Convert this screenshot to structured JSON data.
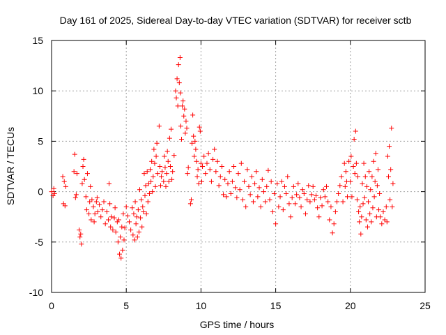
{
  "chart_data": {
    "type": "scatter",
    "title": "Day 161 of 2025, Sidereal Day-to-day VTEC variation (SDTVAR) for receiver sctb",
    "xlabel": "GPS time / hours",
    "ylabel": "SDTVAR / TECUs",
    "xlim": [
      0,
      25
    ],
    "ylim": [
      -10,
      15
    ],
    "xticks": [
      0,
      5,
      10,
      15,
      20,
      25
    ],
    "xtick_labels": [
      "0",
      "5",
      "10",
      "15",
      "20",
      "25"
    ],
    "yticks": [
      -10,
      -5,
      0,
      5,
      10,
      15
    ],
    "ytick_labels": [
      "-10",
      "-5",
      "0",
      "5",
      "10",
      "15"
    ],
    "grid": true,
    "marker": "+",
    "color": "#ff0000",
    "series": [
      {
        "name": "SDTVAR",
        "points": [
          [
            0.0,
            0.0
          ],
          [
            0.1,
            -0.4
          ],
          [
            0.15,
            0.3
          ],
          [
            0.2,
            -0.2
          ],
          [
            0.75,
            1.5
          ],
          [
            0.8,
            -1.2
          ],
          [
            0.85,
            1.0
          ],
          [
            0.9,
            -1.4
          ],
          [
            0.95,
            0.5
          ],
          [
            1.5,
            2.0
          ],
          [
            1.55,
            3.7
          ],
          [
            1.6,
            -0.6
          ],
          [
            1.65,
            -0.3
          ],
          [
            1.7,
            1.8
          ],
          [
            1.85,
            -3.8
          ],
          [
            1.9,
            -4.5
          ],
          [
            1.95,
            -4.2
          ],
          [
            2.0,
            -5.2
          ],
          [
            2.05,
            0.8
          ],
          [
            2.1,
            2.5
          ],
          [
            2.15,
            3.2
          ],
          [
            2.2,
            1.2
          ],
          [
            2.3,
            -0.5
          ],
          [
            2.35,
            -1.8
          ],
          [
            2.4,
            1.8
          ],
          [
            2.5,
            -2.2
          ],
          [
            2.55,
            -1.0
          ],
          [
            2.6,
            0.5
          ],
          [
            2.65,
            -2.8
          ],
          [
            2.7,
            -0.8
          ],
          [
            2.8,
            -1.5
          ],
          [
            2.85,
            -3.0
          ],
          [
            2.9,
            -2.2
          ],
          [
            3.0,
            -1.0
          ],
          [
            3.05,
            -0.6
          ],
          [
            3.1,
            -2.0
          ],
          [
            3.2,
            -1.3
          ],
          [
            3.3,
            -2.5
          ],
          [
            3.4,
            -1.8
          ],
          [
            3.5,
            -1.0
          ],
          [
            3.6,
            -3.2
          ],
          [
            3.7,
            -2.0
          ],
          [
            3.8,
            -2.8
          ],
          [
            3.85,
            0.8
          ],
          [
            3.9,
            -1.2
          ],
          [
            3.95,
            -3.5
          ],
          [
            4.0,
            -2.5
          ],
          [
            4.1,
            -3.8
          ],
          [
            4.2,
            -2.6
          ],
          [
            4.25,
            -1.6
          ],
          [
            4.3,
            -4.0
          ],
          [
            4.4,
            -3.0
          ],
          [
            4.45,
            -5.0
          ],
          [
            4.5,
            -2.8
          ],
          [
            4.55,
            -6.2
          ],
          [
            4.6,
            -4.5
          ],
          [
            4.65,
            -6.6
          ],
          [
            4.7,
            -3.5
          ],
          [
            4.75,
            -5.8
          ],
          [
            4.8,
            -2.2
          ],
          [
            4.85,
            -4.8
          ],
          [
            4.9,
            -3.6
          ],
          [
            5.0,
            -1.5
          ],
          [
            5.1,
            -2.4
          ],
          [
            5.2,
            -3.0
          ],
          [
            5.3,
            -3.8
          ],
          [
            5.4,
            -1.6
          ],
          [
            5.45,
            -4.3
          ],
          [
            5.5,
            -2.2
          ],
          [
            5.55,
            -4.8
          ],
          [
            5.6,
            -1.0
          ],
          [
            5.65,
            -3.2
          ],
          [
            5.7,
            -2.5
          ],
          [
            5.75,
            -4.5
          ],
          [
            5.8,
            -1.8
          ],
          [
            5.85,
            -4.0
          ],
          [
            5.9,
            0.2
          ],
          [
            5.95,
            -2.6
          ],
          [
            6.0,
            -0.8
          ],
          [
            6.05,
            -3.5
          ],
          [
            6.1,
            -1.5
          ],
          [
            6.15,
            -2.0
          ],
          [
            6.2,
            1.8
          ],
          [
            6.25,
            -0.4
          ],
          [
            6.3,
            0.6
          ],
          [
            6.35,
            -2.2
          ],
          [
            6.4,
            2.0
          ],
          [
            6.45,
            -1.0
          ],
          [
            6.5,
            0.8
          ],
          [
            6.55,
            -0.2
          ],
          [
            6.6,
            2.2
          ],
          [
            6.65,
            1.0
          ],
          [
            6.7,
            3.0
          ],
          [
            6.75,
            0.0
          ],
          [
            6.8,
            1.5
          ],
          [
            6.85,
            4.2
          ],
          [
            6.9,
            2.8
          ],
          [
            6.95,
            0.5
          ],
          [
            7.0,
            3.5
          ],
          [
            7.05,
            4.8
          ],
          [
            7.1,
            1.8
          ],
          [
            7.2,
            6.5
          ],
          [
            7.25,
            2.5
          ],
          [
            7.3,
            0.6
          ],
          [
            7.35,
            1.5
          ],
          [
            7.4,
            2.0
          ],
          [
            7.5,
            1.0
          ],
          [
            7.55,
            3.5
          ],
          [
            7.6,
            2.4
          ],
          [
            7.65,
            0.5
          ],
          [
            7.7,
            1.8
          ],
          [
            7.75,
            4.0
          ],
          [
            7.8,
            3.0
          ],
          [
            7.85,
            1.0
          ],
          [
            7.9,
            5.3
          ],
          [
            7.95,
            2.5
          ],
          [
            8.0,
            6.2
          ],
          [
            8.05,
            1.2
          ],
          [
            8.1,
            2.0
          ],
          [
            8.2,
            3.6
          ],
          [
            8.3,
            10.0
          ],
          [
            8.35,
            9.3
          ],
          [
            8.4,
            11.2
          ],
          [
            8.45,
            8.5
          ],
          [
            8.5,
            12.6
          ],
          [
            8.55,
            10.8
          ],
          [
            8.6,
            13.3
          ],
          [
            8.62,
            9.8
          ],
          [
            8.65,
            6.5
          ],
          [
            8.7,
            5.2
          ],
          [
            8.75,
            8.5
          ],
          [
            8.8,
            9.0
          ],
          [
            8.85,
            7.5
          ],
          [
            8.9,
            8.2
          ],
          [
            8.95,
            5.8
          ],
          [
            9.0,
            7.0
          ],
          [
            9.05,
            6.3
          ],
          [
            9.1,
            1.8
          ],
          [
            9.15,
            2.4
          ],
          [
            9.3,
            -1.2
          ],
          [
            9.35,
            -0.8
          ],
          [
            9.4,
            4.8
          ],
          [
            9.45,
            7.6
          ],
          [
            9.5,
            5.5
          ],
          [
            9.55,
            3.5
          ],
          [
            9.6,
            5.0
          ],
          [
            9.65,
            4.2
          ],
          [
            9.7,
            3.0
          ],
          [
            9.75,
            1.5
          ],
          [
            9.8,
            2.2
          ],
          [
            9.85,
            0.8
          ],
          [
            9.9,
            6.4
          ],
          [
            9.95,
            6.0
          ],
          [
            10.0,
            2.8
          ],
          [
            10.05,
            1.0
          ],
          [
            10.1,
            2.5
          ],
          [
            10.2,
            3.5
          ],
          [
            10.3,
            1.8
          ],
          [
            10.4,
            2.8
          ],
          [
            10.5,
            3.8
          ],
          [
            10.6,
            2.2
          ],
          [
            10.7,
            1.0
          ],
          [
            10.8,
            3.2
          ],
          [
            10.9,
            4.2
          ],
          [
            11.0,
            2.0
          ],
          [
            11.1,
            3.0
          ],
          [
            11.2,
            0.6
          ],
          [
            11.3,
            1.5
          ],
          [
            11.4,
            2.5
          ],
          [
            11.5,
            -0.3
          ],
          [
            11.6,
            1.2
          ],
          [
            11.7,
            -0.5
          ],
          [
            11.8,
            0.8
          ],
          [
            11.9,
            2.0
          ],
          [
            12.0,
            -0.2
          ],
          [
            12.1,
            1.0
          ],
          [
            12.2,
            2.5
          ],
          [
            12.3,
            0.4
          ],
          [
            12.4,
            -0.6
          ],
          [
            12.5,
            1.8
          ],
          [
            12.6,
            0.2
          ],
          [
            12.7,
            2.8
          ],
          [
            12.8,
            -0.8
          ],
          [
            12.9,
            1.0
          ],
          [
            13.0,
            -1.5
          ],
          [
            13.1,
            2.2
          ],
          [
            13.2,
            0.5
          ],
          [
            13.3,
            -0.3
          ],
          [
            13.4,
            1.5
          ],
          [
            13.5,
            -1.0
          ],
          [
            13.6,
            0.8
          ],
          [
            13.7,
            2.0
          ],
          [
            13.8,
            -0.5
          ],
          [
            13.9,
            0.4
          ],
          [
            14.0,
            -1.5
          ],
          [
            14.1,
            1.2
          ],
          [
            14.2,
            0.0
          ],
          [
            14.3,
            -1.0
          ],
          [
            14.4,
            0.5
          ],
          [
            14.5,
            2.1
          ],
          [
            14.6,
            -0.8
          ],
          [
            14.7,
            1.0
          ],
          [
            14.8,
            -2.0
          ],
          [
            14.9,
            -0.2
          ],
          [
            15.0,
            -3.2
          ],
          [
            15.1,
            0.8
          ],
          [
            15.2,
            -1.5
          ],
          [
            15.3,
            -0.5
          ],
          [
            15.4,
            1.0
          ],
          [
            15.5,
            -1.8
          ],
          [
            15.6,
            0.5
          ],
          [
            15.7,
            -0.2
          ],
          [
            15.8,
            1.5
          ],
          [
            15.9,
            -1.2
          ],
          [
            16.0,
            -2.5
          ],
          [
            16.1,
            -0.6
          ],
          [
            16.2,
            0.5
          ],
          [
            16.3,
            -1.2
          ],
          [
            16.4,
            -0.3
          ],
          [
            16.5,
            0.8
          ],
          [
            16.6,
            -0.6
          ],
          [
            16.7,
            -1.5
          ],
          [
            16.8,
            0.2
          ],
          [
            16.9,
            -0.2
          ],
          [
            17.0,
            -2.2
          ],
          [
            17.1,
            -0.8
          ],
          [
            17.2,
            0.6
          ],
          [
            17.3,
            -1.0
          ],
          [
            17.4,
            -0.3
          ],
          [
            17.5,
            0.5
          ],
          [
            17.6,
            -0.8
          ],
          [
            17.7,
            -0.4
          ],
          [
            17.8,
            -1.6
          ],
          [
            17.9,
            -2.5
          ],
          [
            18.0,
            -0.6
          ],
          [
            18.1,
            -1.4
          ],
          [
            18.2,
            0.2
          ],
          [
            18.3,
            -0.5
          ],
          [
            18.4,
            0.5
          ],
          [
            18.5,
            -1.0
          ],
          [
            18.6,
            -2.8
          ],
          [
            18.7,
            -1.5
          ],
          [
            18.8,
            -4.1
          ],
          [
            18.9,
            -3.2
          ],
          [
            19.0,
            -2.0
          ],
          [
            19.1,
            -1.0
          ],
          [
            19.2,
            -0.2
          ],
          [
            19.3,
            0.6
          ],
          [
            19.4,
            1.5
          ],
          [
            19.5,
            -1.0
          ],
          [
            19.6,
            2.8
          ],
          [
            19.65,
            0.5
          ],
          [
            19.7,
            2.0
          ],
          [
            19.75,
            1.0
          ],
          [
            19.8,
            -0.5
          ],
          [
            19.9,
            3.0
          ],
          [
            20.0,
            1.0
          ],
          [
            20.05,
            3.5
          ],
          [
            20.1,
            -0.5
          ],
          [
            20.2,
            2.5
          ],
          [
            20.25,
            5.2
          ],
          [
            20.3,
            1.8
          ],
          [
            20.35,
            6.0
          ],
          [
            20.4,
            2.8
          ],
          [
            20.45,
            -0.8
          ],
          [
            20.5,
            1.5
          ],
          [
            20.55,
            -2.0
          ],
          [
            20.6,
            -3.0
          ],
          [
            20.65,
            -1.5
          ],
          [
            20.7,
            -4.2
          ],
          [
            20.75,
            -2.5
          ],
          [
            20.8,
            0.8
          ],
          [
            20.85,
            -1.2
          ],
          [
            20.9,
            2.8
          ],
          [
            20.95,
            -0.6
          ],
          [
            21.0,
            1.5
          ],
          [
            21.05,
            -2.8
          ],
          [
            21.1,
            0.5
          ],
          [
            21.15,
            -3.5
          ],
          [
            21.2,
            -1.0
          ],
          [
            21.25,
            2.0
          ],
          [
            21.3,
            -2.2
          ],
          [
            21.35,
            0.2
          ],
          [
            21.4,
            -3.0
          ],
          [
            21.45,
            1.5
          ],
          [
            21.5,
            -1.6
          ],
          [
            21.55,
            3.0
          ],
          [
            21.6,
            -0.5
          ],
          [
            21.65,
            1.0
          ],
          [
            21.7,
            3.8
          ],
          [
            21.75,
            -2.5
          ],
          [
            21.8,
            0.6
          ],
          [
            21.85,
            2.2
          ],
          [
            21.9,
            -1.8
          ],
          [
            21.95,
            -0.2
          ],
          [
            22.0,
            -2.5
          ],
          [
            22.1,
            -3.2
          ],
          [
            22.2,
            -2.0
          ],
          [
            22.3,
            -2.8
          ],
          [
            22.4,
            -1.5
          ],
          [
            22.45,
            -3.0
          ],
          [
            22.5,
            3.5
          ],
          [
            22.55,
            1.5
          ],
          [
            22.6,
            4.5
          ],
          [
            22.65,
            -0.8
          ],
          [
            22.7,
            2.2
          ],
          [
            22.75,
            6.3
          ],
          [
            22.8,
            -1.5
          ],
          [
            22.85,
            0.8
          ]
        ]
      }
    ]
  }
}
